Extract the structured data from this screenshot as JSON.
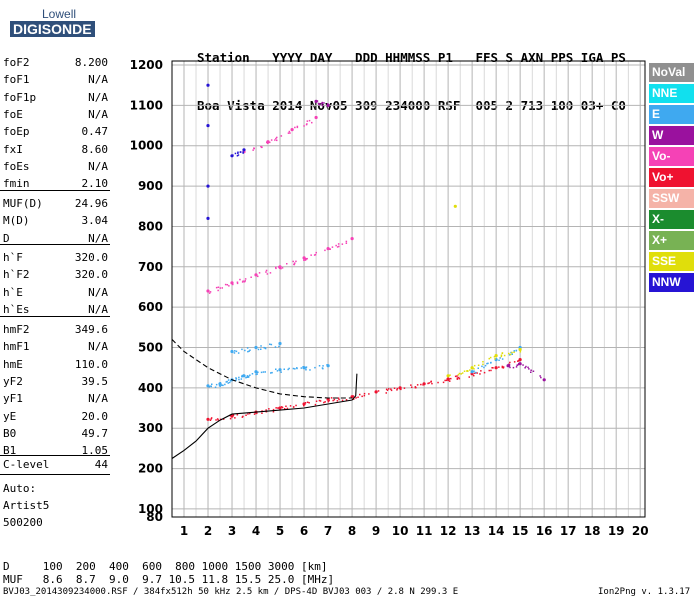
{
  "logo": {
    "line1": "Lowell",
    "line2": "DIGISONDE"
  },
  "header": {
    "line1": "Station   YYYY DAY   DDD HHMMSS P1   FFS S AXN PPS IGA PS",
    "line2": "Boa Vista 2014 Nov05 309 234000 RSF  005 2 713 100 03+ C0"
  },
  "params_group1": [
    {
      "name": "foF2",
      "value": "8.200"
    },
    {
      "name": "foF1",
      "value": "N/A"
    },
    {
      "name": "foF1p",
      "value": "N/A"
    },
    {
      "name": "foE",
      "value": "N/A"
    },
    {
      "name": "foEp",
      "value": "0.47"
    },
    {
      "name": "fxI",
      "value": "8.60"
    },
    {
      "name": "foEs",
      "value": "N/A"
    },
    {
      "name": "fmin",
      "value": "2.10"
    }
  ],
  "params_group2": [
    {
      "name": "MUF(D)",
      "value": "24.96"
    },
    {
      "name": "M(D)",
      "value": "3.04"
    },
    {
      "name": "D",
      "value": "N/A"
    }
  ],
  "params_group3": [
    {
      "name": "h`F",
      "value": "320.0"
    },
    {
      "name": "h`F2",
      "value": "320.0"
    },
    {
      "name": "h`E",
      "value": "N/A"
    },
    {
      "name": "h`Es",
      "value": "N/A"
    }
  ],
  "params_group4": [
    {
      "name": "hmF2",
      "value": "349.6"
    },
    {
      "name": "hmF1",
      "value": "N/A"
    },
    {
      "name": "hmE",
      "value": "110.0"
    },
    {
      "name": "yF2",
      "value": "39.5"
    },
    {
      "name": "yF1",
      "value": "N/A"
    },
    {
      "name": "yE",
      "value": "20.0"
    },
    {
      "name": "B0",
      "value": "49.7"
    },
    {
      "name": "B1",
      "value": "1.05"
    }
  ],
  "clevel": {
    "name": "C-level",
    "value": "44"
  },
  "auto": {
    "line1": "Auto:",
    "line2": "Artist5",
    "line3": "500200"
  },
  "legend": [
    {
      "label": "NoVal",
      "color": "#909090"
    },
    {
      "label": "NNE",
      "color": "#11e0ee"
    },
    {
      "label": "E",
      "color": "#3fa9f0"
    },
    {
      "label": "W",
      "color": "#9a119e"
    },
    {
      "label": "Vo-",
      "color": "#f542b6"
    },
    {
      "label": "Vo+",
      "color": "#ef1230"
    },
    {
      "label": "SSW",
      "color": "#f5b3a8"
    },
    {
      "label": "X-",
      "color": "#1b8c2e"
    },
    {
      "label": "X+",
      "color": "#78b254"
    },
    {
      "label": "SSE",
      "color": "#e0de0b"
    },
    {
      "label": "NNW",
      "color": "#2614d4"
    }
  ],
  "muf_table": {
    "row_d": "D     100  200  400  600  800 1000 1500 3000 [km]",
    "row_muf": "MUF   8.6  8.7  9.0  9.7 10.5 11.8 15.5 25.0 [MHz]"
  },
  "footer": {
    "left": "BVJ03_2014309234000.RSF / 384fx512h 50 kHz 2.5 km / DPS-4D BVJ03 003 / 2.8 N 299.3 E",
    "right": "Ion2Png v. 1.3.17"
  },
  "chart_data": {
    "type": "scatter",
    "title": "",
    "xlabel": "",
    "ylabel": "",
    "xlim": [
      0.5,
      20.2
    ],
    "ylim": [
      80,
      1210
    ],
    "x_ticks": [
      1,
      2,
      3,
      4,
      5,
      6,
      7,
      8,
      9,
      10,
      11,
      12,
      13,
      14,
      15,
      16,
      17,
      18,
      19,
      20
    ],
    "y_ticks": [
      80,
      100,
      200,
      300,
      400,
      500,
      600,
      700,
      800,
      900,
      1000,
      1100,
      1200
    ],
    "grid": true,
    "legend_position": "right",
    "series": [
      {
        "name": "Vo+",
        "color": "#ef1230",
        "points": [
          [
            2.0,
            322
          ],
          [
            3.0,
            330
          ],
          [
            4.0,
            340
          ],
          [
            5.0,
            350
          ],
          [
            6.0,
            360
          ],
          [
            7.0,
            372
          ],
          [
            8.0,
            378
          ],
          [
            9.0,
            390
          ],
          [
            10.0,
            400
          ],
          [
            11.0,
            410
          ],
          [
            12.0,
            422
          ],
          [
            13.0,
            435
          ],
          [
            14.0,
            450
          ],
          [
            15.0,
            470
          ]
        ]
      },
      {
        "name": "Vo-",
        "color": "#f542b6",
        "points": [
          [
            2.0,
            640
          ],
          [
            3.0,
            660
          ],
          [
            4.0,
            680
          ],
          [
            5.0,
            700
          ],
          [
            6.0,
            722
          ],
          [
            7.0,
            745
          ],
          [
            8.0,
            770
          ],
          [
            3.5,
            985
          ],
          [
            4.5,
            1010
          ],
          [
            5.5,
            1040
          ],
          [
            6.5,
            1070
          ]
        ]
      },
      {
        "name": "E",
        "color": "#3fa9f0",
        "points": [
          [
            2.0,
            405
          ],
          [
            2.5,
            410
          ],
          [
            3.0,
            420
          ],
          [
            3.5,
            430
          ],
          [
            4.0,
            440
          ],
          [
            5.0,
            445
          ],
          [
            6.0,
            450
          ],
          [
            7.0,
            455
          ],
          [
            3.0,
            490
          ],
          [
            4.0,
            500
          ],
          [
            5.0,
            510
          ],
          [
            13.0,
            440
          ],
          [
            14.0,
            470
          ],
          [
            15.0,
            500
          ]
        ]
      },
      {
        "name": "SSE",
        "color": "#e0de0b",
        "points": [
          [
            12.0,
            430
          ],
          [
            13.0,
            450
          ],
          [
            14.0,
            480
          ],
          [
            15.0,
            495
          ],
          [
            12.3,
            850
          ]
        ]
      },
      {
        "name": "NNW",
        "color": "#2614d4",
        "points": [
          [
            2.0,
            820
          ],
          [
            2.0,
            900
          ],
          [
            2.0,
            1050
          ],
          [
            2.0,
            1150
          ],
          [
            3.0,
            975
          ],
          [
            3.5,
            990
          ]
        ]
      },
      {
        "name": "W",
        "color": "#9a119e",
        "points": [
          [
            6.5,
            1110
          ],
          [
            7.0,
            1100
          ],
          [
            14.5,
            455
          ],
          [
            15.0,
            460
          ],
          [
            16.0,
            420
          ]
        ]
      }
    ],
    "profile_curve": {
      "x": [
        0.5,
        1,
        1.5,
        2,
        2.5,
        3,
        4,
        5,
        6,
        7,
        7.5,
        8,
        8.15,
        8.2
      ],
      "y": [
        225,
        245,
        268,
        300,
        320,
        335,
        340,
        345,
        350,
        360,
        365,
        370,
        380,
        435
      ]
    },
    "dashed_curve": {
      "x": [
        0.5,
        1,
        2,
        3,
        4,
        5,
        6,
        7,
        8
      ],
      "y": [
        520,
        490,
        450,
        420,
        400,
        385,
        378,
        375,
        375
      ]
    }
  }
}
